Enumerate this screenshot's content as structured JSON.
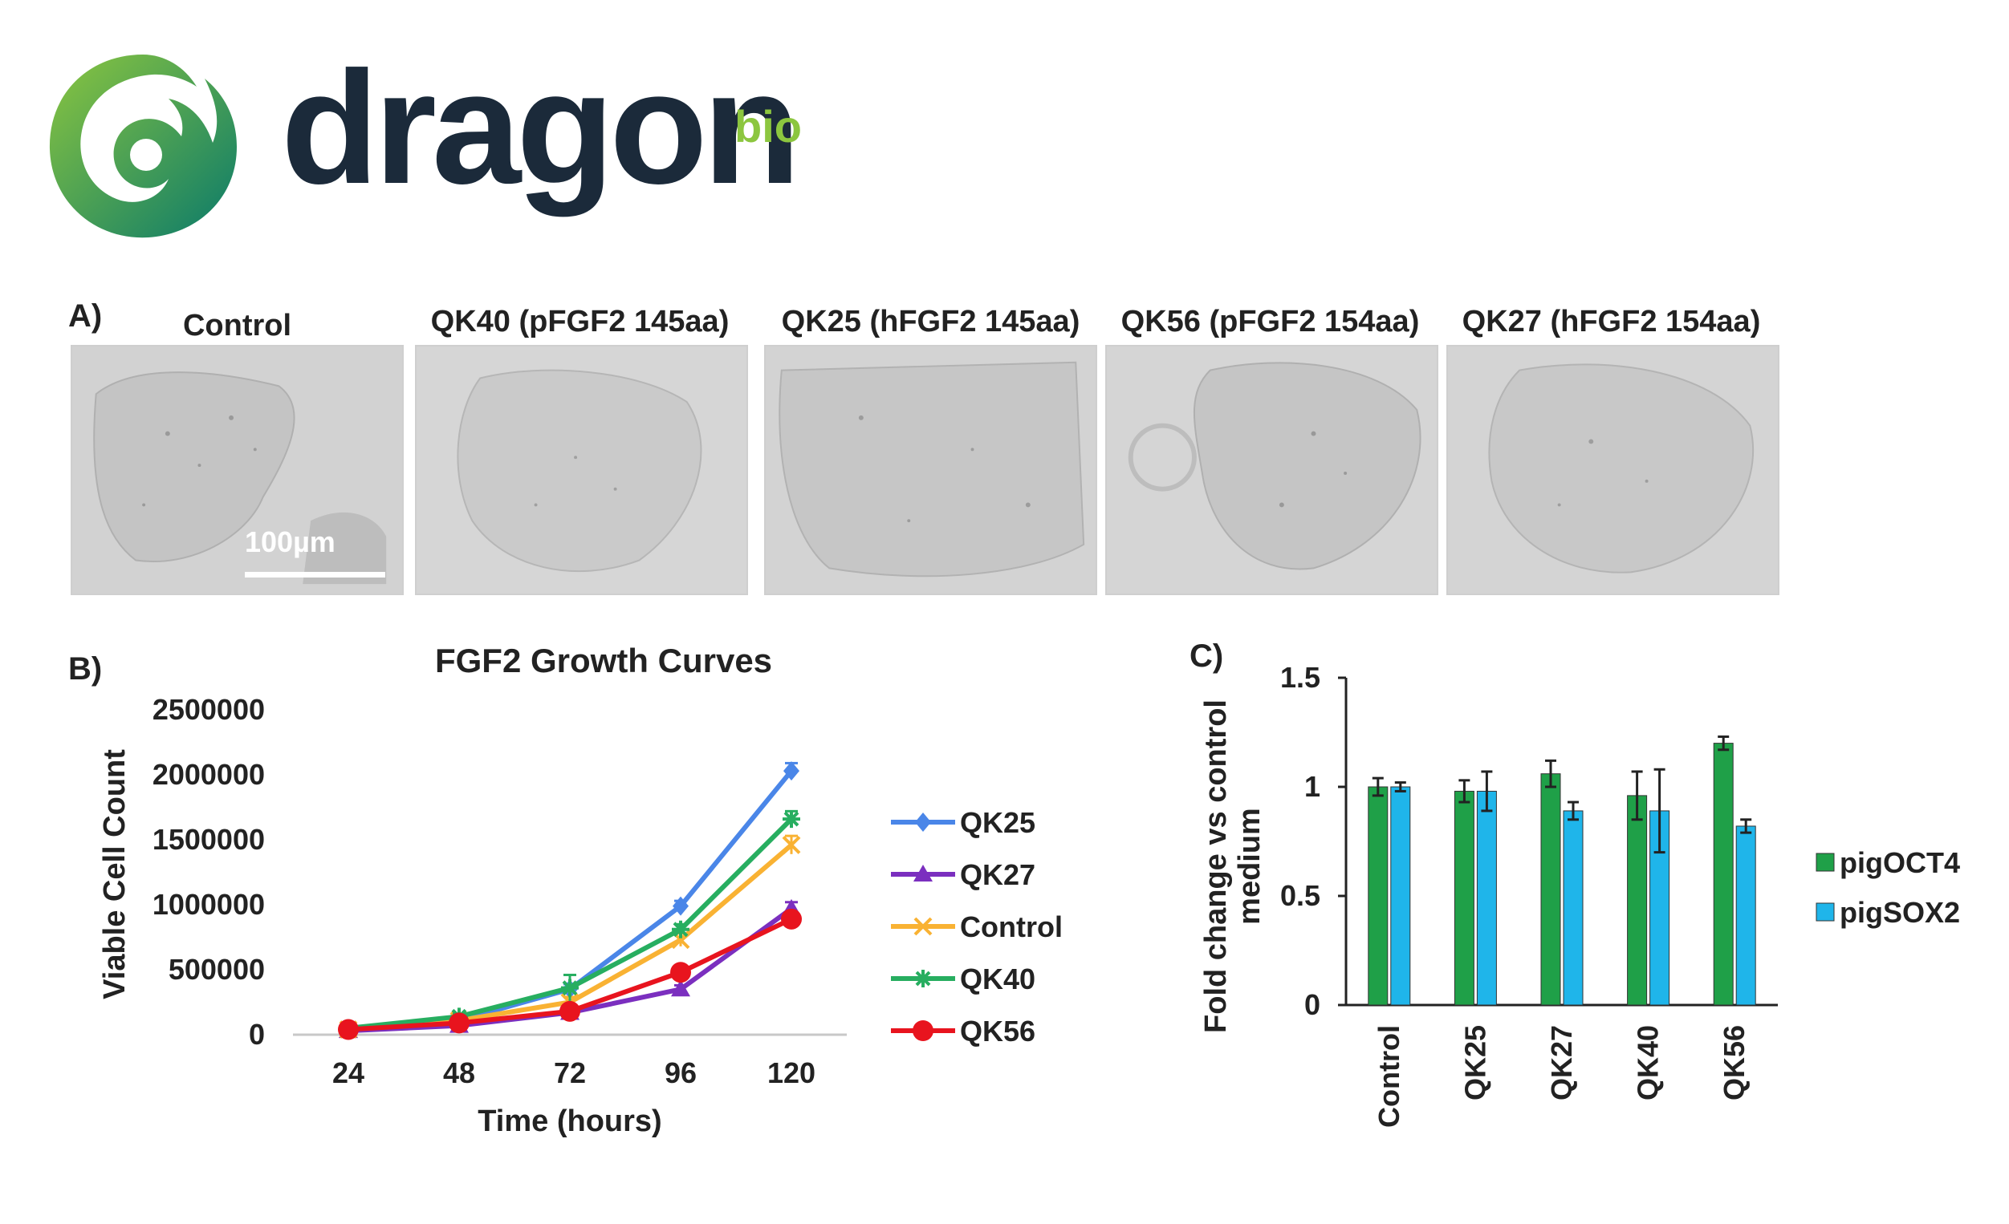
{
  "brand": {
    "name": "dragon",
    "suffix": "bio",
    "colors": {
      "wordmark": "#1b2a3a",
      "suffix": "#8cc63f",
      "mark_start": "#8cc63f",
      "mark_end": "#0a7a6a"
    }
  },
  "panel_a": {
    "letter": "A)",
    "images": [
      {
        "label": "Control",
        "scale_bar": "100µm"
      },
      {
        "label": "QK40 (pFGF2 145aa)"
      },
      {
        "label": "QK25 (hFGF2 145aa)"
      },
      {
        "label": "QK56 (pFGF2 154aa)"
      },
      {
        "label": "QK27 (hFGF2 154aa)"
      }
    ]
  },
  "panel_b_letter": "B)",
  "panel_c_letter": "C)",
  "chart_data": [
    {
      "type": "line",
      "title": "FGF2 Growth Curves",
      "xlabel": "Time (hours)",
      "ylabel": "Viable Cell Count",
      "x": [
        24,
        48,
        72,
        96,
        120
      ],
      "ylim": [
        0,
        2500000
      ],
      "yticks": [
        "0",
        "500000",
        "1000000",
        "1500000",
        "2000000",
        "2500000"
      ],
      "xticks": [
        "24",
        "48",
        "72",
        "96",
        "120"
      ],
      "legend_position": "right",
      "series": [
        {
          "name": "QK25",
          "color": "#4a86e8",
          "marker": "diamond",
          "values": [
            40000,
            110000,
            350000,
            990000,
            2030000
          ],
          "errors": [
            15000,
            20000,
            40000,
            40000,
            60000
          ]
        },
        {
          "name": "QK27",
          "color": "#7b2fbf",
          "marker": "triangle",
          "values": [
            30000,
            70000,
            170000,
            350000,
            970000
          ],
          "errors": [
            10000,
            15000,
            30000,
            30000,
            50000
          ]
        },
        {
          "name": "Control",
          "color": "#f9b233",
          "marker": "x",
          "values": [
            40000,
            110000,
            250000,
            730000,
            1460000
          ],
          "errors": [
            15000,
            20000,
            40000,
            50000,
            70000
          ]
        },
        {
          "name": "QK40",
          "color": "#27ae60",
          "marker": "star",
          "values": [
            50000,
            140000,
            360000,
            810000,
            1660000
          ],
          "errors": [
            15000,
            20000,
            100000,
            40000,
            60000
          ]
        },
        {
          "name": "QK56",
          "color": "#e8141e",
          "marker": "circle",
          "values": [
            40000,
            90000,
            180000,
            480000,
            890000
          ],
          "errors": [
            10000,
            15000,
            30000,
            40000,
            50000
          ]
        }
      ]
    },
    {
      "type": "bar",
      "title": "",
      "xlabel": "",
      "ylabel": "Fold change vs control medium",
      "categories": [
        "Control",
        "QK25",
        "QK27",
        "QK40",
        "QK56"
      ],
      "ylim": [
        0,
        1.5
      ],
      "yticks": [
        "0",
        "0.5",
        "1",
        "1.5"
      ],
      "legend_position": "right",
      "series": [
        {
          "name": "pigOCT4",
          "color": "#1fa048",
          "values": [
            1.0,
            0.98,
            1.06,
            0.96,
            1.2
          ],
          "errors": [
            0.04,
            0.05,
            0.06,
            0.11,
            0.03
          ]
        },
        {
          "name": "pigSOX2",
          "color": "#1fb5ea",
          "values": [
            1.0,
            0.98,
            0.89,
            0.89,
            0.82
          ],
          "errors": [
            0.02,
            0.09,
            0.04,
            0.19,
            0.03
          ]
        }
      ]
    }
  ]
}
